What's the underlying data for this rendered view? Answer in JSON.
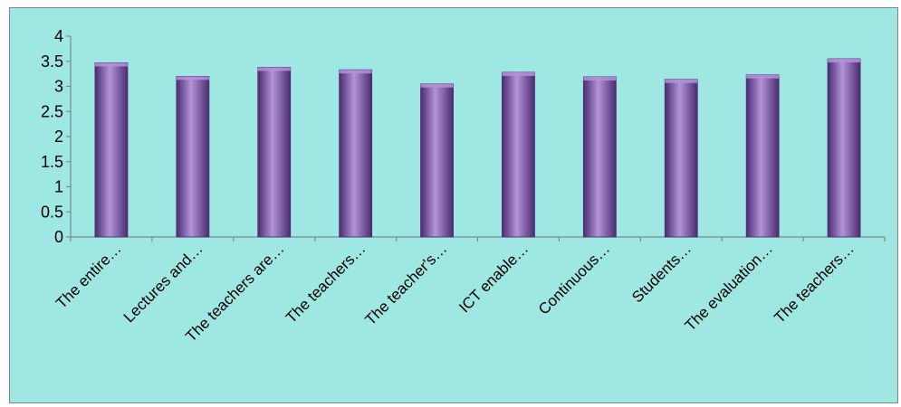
{
  "chart_data": {
    "type": "bar",
    "categories": [
      "The entire…",
      "Lectures and…",
      "The teachers are…",
      "The teachers…",
      "The teacher's…",
      "ICT enable…",
      "Continuous…",
      "Students…",
      "The evaluation…",
      "The teachers…"
    ],
    "values": [
      3.47,
      3.2,
      3.38,
      3.33,
      3.05,
      3.28,
      3.19,
      3.14,
      3.23,
      3.55
    ],
    "ylim": [
      0,
      4
    ],
    "yticks": [
      "0",
      "0.5",
      "1",
      "1.5",
      "2",
      "2.5",
      "3",
      "3.5",
      "4"
    ],
    "grid": false,
    "legend": "none",
    "title": "",
    "xlabel": "",
    "ylabel": "",
    "colors": {
      "background": "#9fe7e3",
      "bar": "#7d55a8",
      "bar_light": "#b493d8",
      "bar_dark": "#4a2c70",
      "axis": "#7a8a8a"
    }
  }
}
